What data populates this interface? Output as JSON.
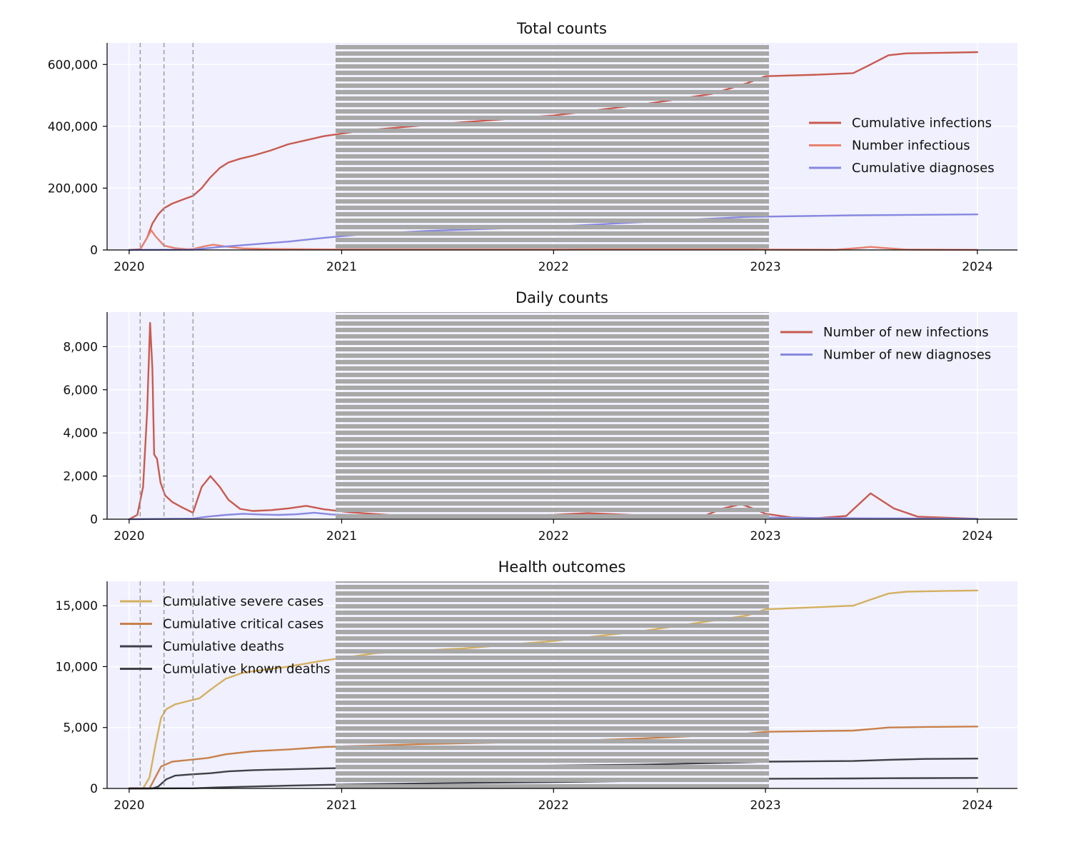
{
  "colors": {
    "cum_infections": "#c85a50",
    "n_infectious": "#e8806e",
    "cum_diagnoses": "#8888e0",
    "new_infections": "#c85a50",
    "new_diagnoses": "#8888e0",
    "cum_severe": "#d4b060",
    "cum_critical": "#c8804a",
    "cum_deaths": "#404048",
    "cum_known_deaths": "#404048",
    "intervention_lines": "#999999",
    "redaction_overlay": "#a8a8a8",
    "plot_background": "#f0f0fe"
  },
  "chart_data": [
    {
      "type": "line",
      "title": "Total counts",
      "xlabel": "",
      "ylabel": "",
      "xlim": [
        "2019-11-24",
        "2024-03-10"
      ],
      "ylim": [
        0,
        670000
      ],
      "x_ticks": [
        "2020",
        "2021",
        "2022",
        "2023",
        "2024"
      ],
      "y_ticks": [
        "0",
        "200,000",
        "400,000",
        "600,000"
      ],
      "grid": true,
      "legend": "center-right",
      "intervention_dates": [
        "2020-01-20",
        "2020-03-01",
        "2020-04-20"
      ],
      "series": [
        {
          "name": "Cumulative infections",
          "color_key": "cum_infections",
          "x": [
            "2020-01-01",
            "2020-01-20",
            "2020-02-01",
            "2020-02-10",
            "2020-02-20",
            "2020-03-01",
            "2020-03-15",
            "2020-04-01",
            "2020-04-20",
            "2020-05-05",
            "2020-05-20",
            "2020-06-05",
            "2020-06-20",
            "2020-07-10",
            "2020-08-01",
            "2020-09-01",
            "2020-10-01",
            "2020-11-01",
            "2020-12-01",
            "2021-02-01",
            "2021-06-01",
            "2022-01-01",
            "2022-06-01",
            "2022-10-01",
            "2022-12-01",
            "2023-01-01",
            "2023-04-01",
            "2023-06-01",
            "2023-07-01",
            "2023-08-01",
            "2023-09-01",
            "2023-11-01",
            "2024-01-01"
          ],
          "y": [
            0,
            2000,
            40000,
            85000,
            115000,
            135000,
            150000,
            162000,
            175000,
            200000,
            235000,
            265000,
            283000,
            295000,
            305000,
            322000,
            342000,
            355000,
            368000,
            385000,
            405000,
            435000,
            470000,
            505000,
            540000,
            562000,
            567000,
            572000,
            600000,
            630000,
            636000,
            638000,
            640000
          ]
        },
        {
          "name": "Number infectious",
          "color_key": "n_infectious",
          "x": [
            "2020-01-01",
            "2020-01-20",
            "2020-02-01",
            "2020-02-08",
            "2020-02-15",
            "2020-03-01",
            "2020-03-20",
            "2020-04-10",
            "2020-04-20",
            "2020-05-10",
            "2020-05-25",
            "2020-06-15",
            "2020-07-15",
            "2020-09-01",
            "2020-11-01",
            "2021-01-01",
            "2022-01-01",
            "2022-11-01",
            "2023-01-01",
            "2023-05-01",
            "2023-06-15",
            "2023-07-01",
            "2023-07-20",
            "2023-09-01",
            "2024-01-01"
          ],
          "y": [
            0,
            1500,
            40000,
            64000,
            45000,
            14000,
            6000,
            2500,
            3000,
            12000,
            17000,
            11000,
            5000,
            3000,
            2500,
            1500,
            1500,
            3000,
            1500,
            800,
            7000,
            10000,
            7000,
            1500,
            500
          ]
        },
        {
          "name": "Cumulative diagnoses",
          "color_key": "cum_diagnoses",
          "x": [
            "2020-01-01",
            "2020-04-20",
            "2020-06-01",
            "2020-08-01",
            "2020-10-01",
            "2020-12-01",
            "2021-02-01",
            "2021-06-01",
            "2022-01-01",
            "2022-06-01",
            "2022-12-01",
            "2023-06-01",
            "2024-01-01"
          ],
          "y": [
            0,
            1000,
            9000,
            18000,
            27000,
            39000,
            50000,
            62000,
            75000,
            90000,
            107000,
            112000,
            115000
          ]
        }
      ]
    },
    {
      "type": "line",
      "title": "Daily counts",
      "xlabel": "",
      "ylabel": "",
      "xlim": [
        "2019-11-24",
        "2024-03-10"
      ],
      "ylim": [
        0,
        9600
      ],
      "x_ticks": [
        "2020",
        "2021",
        "2022",
        "2023",
        "2024"
      ],
      "y_ticks": [
        "0",
        "2,000",
        "4,000",
        "6,000",
        "8,000"
      ],
      "grid": true,
      "legend": "upper-right",
      "intervention_dates": [
        "2020-01-20",
        "2020-03-01",
        "2020-04-20"
      ],
      "series": [
        {
          "name": "Number of new infections",
          "color_key": "new_infections",
          "x": [
            "2020-01-01",
            "2020-01-15",
            "2020-01-25",
            "2020-02-01",
            "2020-02-06",
            "2020-02-10",
            "2020-02-13",
            "2020-02-18",
            "2020-02-24",
            "2020-03-03",
            "2020-03-15",
            "2020-04-01",
            "2020-04-20",
            "2020-05-05",
            "2020-05-20",
            "2020-06-05",
            "2020-06-20",
            "2020-07-10",
            "2020-08-01",
            "2020-09-01",
            "2020-10-01",
            "2020-11-01",
            "2020-12-01",
            "2021-01-15",
            "2021-04-01",
            "2021-08-01",
            "2022-01-01",
            "2022-03-01",
            "2022-06-01",
            "2022-09-15",
            "2022-10-20",
            "2022-11-20",
            "2022-12-15",
            "2023-01-01",
            "2023-02-15",
            "2023-04-01",
            "2023-05-20",
            "2023-07-01",
            "2023-08-10",
            "2023-09-20",
            "2024-01-01"
          ],
          "y": [
            0,
            200,
            1500,
            5000,
            9100,
            7000,
            3000,
            2800,
            1700,
            1100,
            800,
            550,
            300,
            1500,
            2000,
            1500,
            900,
            480,
            380,
            420,
            500,
            620,
            460,
            320,
            180,
            130,
            200,
            280,
            180,
            130,
            500,
            700,
            450,
            250,
            80,
            50,
            150,
            1200,
            500,
            120,
            20
          ]
        },
        {
          "name": "Number of new diagnoses",
          "color_key": "new_diagnoses",
          "x": [
            "2020-01-01",
            "2020-04-20",
            "2020-05-15",
            "2020-06-15",
            "2020-07-15",
            "2020-08-15",
            "2020-09-15",
            "2020-10-15",
            "2020-11-15",
            "2020-12-15",
            "2021-03-01",
            "2021-08-01",
            "2022-03-01",
            "2022-12-01",
            "2023-01-01",
            "2023-04-01",
            "2023-07-01",
            "2024-01-01"
          ],
          "y": [
            0,
            30,
            120,
            200,
            250,
            220,
            200,
            230,
            300,
            220,
            170,
            130,
            130,
            100,
            80,
            50,
            40,
            20
          ]
        }
      ]
    },
    {
      "type": "line",
      "title": "Health outcomes",
      "xlabel": "",
      "ylabel": "",
      "xlim": [
        "2019-11-24",
        "2024-03-10"
      ],
      "ylim": [
        0,
        17000
      ],
      "x_ticks": [
        "2020",
        "2021",
        "2022",
        "2023",
        "2024"
      ],
      "y_ticks": [
        "0",
        "5,000",
        "10,000",
        "15,000"
      ],
      "grid": true,
      "legend": "upper-left",
      "intervention_dates": [
        "2020-01-20",
        "2020-03-01",
        "2020-04-20"
      ],
      "series": [
        {
          "name": "Cumulative severe cases",
          "color_key": "cum_severe",
          "x": [
            "2020-01-01",
            "2020-01-25",
            "2020-02-05",
            "2020-02-15",
            "2020-02-25",
            "2020-03-05",
            "2020-03-20",
            "2020-04-10",
            "2020-05-01",
            "2020-05-20",
            "2020-06-15",
            "2020-07-15",
            "2020-08-15",
            "2020-10-01",
            "2020-12-01",
            "2021-03-01",
            "2021-08-01",
            "2022-01-01",
            "2022-06-01",
            "2022-12-01",
            "2023-01-01",
            "2023-06-01",
            "2023-07-01",
            "2023-08-01",
            "2023-09-01",
            "2023-11-01",
            "2024-01-01"
          ],
          "y": [
            0,
            0,
            900,
            3500,
            5800,
            6500,
            6900,
            7150,
            7400,
            8100,
            9000,
            9500,
            9700,
            10000,
            10500,
            11100,
            11500,
            12100,
            12900,
            14200,
            14700,
            15000,
            15500,
            16000,
            16150,
            16200,
            16250
          ]
        },
        {
          "name": "Cumulative critical cases",
          "color_key": "cum_critical",
          "x": [
            "2020-01-01",
            "2020-02-05",
            "2020-02-15",
            "2020-02-25",
            "2020-03-15",
            "2020-04-15",
            "2020-05-15",
            "2020-06-15",
            "2020-08-01",
            "2020-10-01",
            "2020-12-01",
            "2021-06-01",
            "2022-01-01",
            "2022-06-01",
            "2022-12-01",
            "2023-01-01",
            "2023-06-01",
            "2023-08-01",
            "2023-10-01",
            "2024-01-01"
          ],
          "y": [
            0,
            0,
            900,
            1800,
            2200,
            2350,
            2500,
            2800,
            3050,
            3200,
            3400,
            3650,
            3850,
            4100,
            4500,
            4650,
            4750,
            5000,
            5050,
            5080
          ]
        },
        {
          "name": "Cumulative deaths",
          "color_key": "cum_deaths",
          "x": [
            "2020-01-01",
            "2020-02-10",
            "2020-02-20",
            "2020-03-05",
            "2020-03-20",
            "2020-04-15",
            "2020-05-20",
            "2020-06-20",
            "2020-08-01",
            "2020-10-01",
            "2020-12-01",
            "2021-06-01",
            "2022-01-01",
            "2022-06-01",
            "2022-12-01",
            "2023-01-01",
            "2023-06-01",
            "2023-08-01",
            "2023-10-01",
            "2024-01-01"
          ],
          "y": [
            0,
            0,
            150,
            750,
            1050,
            1150,
            1250,
            1400,
            1500,
            1570,
            1650,
            1800,
            1870,
            1950,
            2150,
            2200,
            2250,
            2350,
            2420,
            2450
          ]
        },
        {
          "name": "Cumulative known deaths",
          "color_key": "cum_known_deaths",
          "x": [
            "2020-01-01",
            "2020-04-20",
            "2020-06-01",
            "2020-08-01",
            "2020-10-01",
            "2020-12-01",
            "2021-06-01",
            "2022-01-01",
            "2022-06-01",
            "2022-12-01",
            "2023-01-01",
            "2023-06-01",
            "2023-08-01",
            "2024-01-01"
          ],
          "y": [
            0,
            10,
            80,
            160,
            230,
            290,
            420,
            520,
            620,
            760,
            800,
            820,
            840,
            860
          ]
        }
      ]
    }
  ]
}
